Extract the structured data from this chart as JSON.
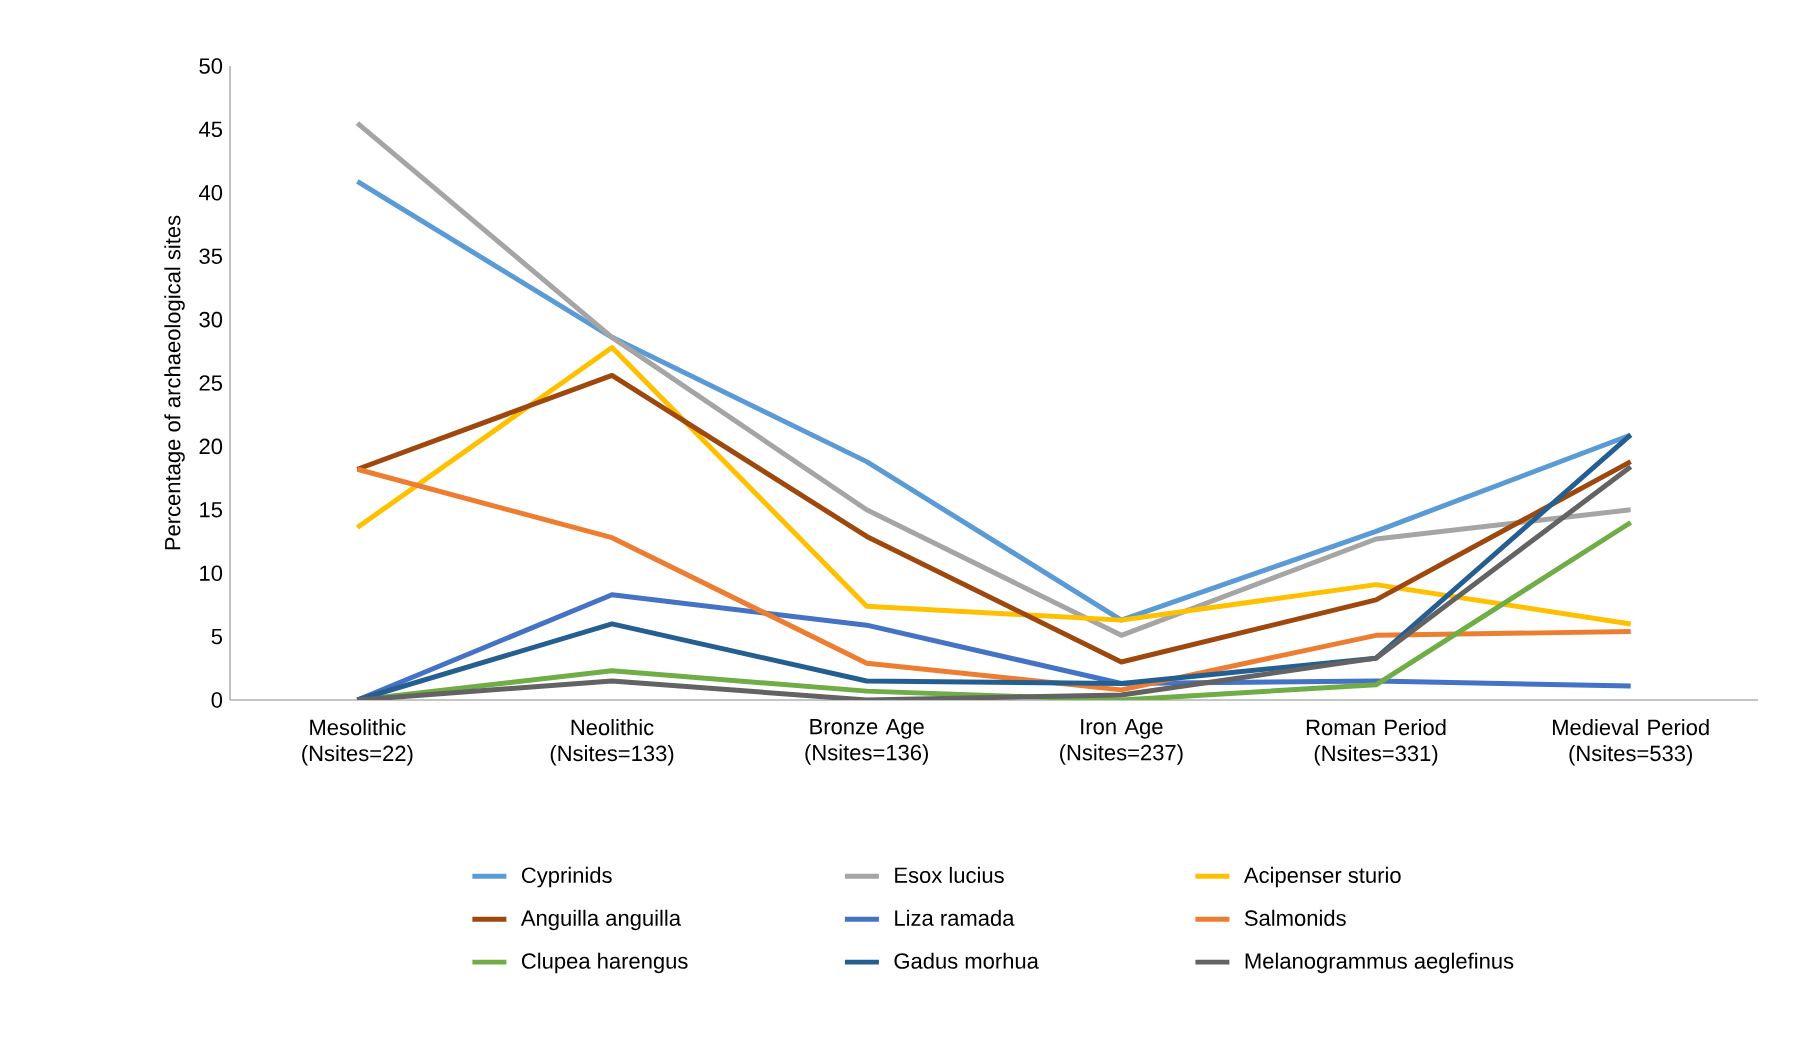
{
  "chart_data": {
    "type": "line",
    "ylabel": "Percentage of archaeological sites",
    "categories": [
      "Mesolithic (Nsites=22)",
      "Neolithic (Nsites=133)",
      "Bronze Age (Nsites=136)",
      "Iron Age (Nsites=237)",
      "Roman Period (Nsites=331)",
      "Medieval Period (Nsites=533)"
    ],
    "ylim": [
      0,
      50
    ],
    "yticks": [
      0,
      5,
      10,
      15,
      20,
      25,
      30,
      35,
      40,
      45,
      50
    ],
    "grid": false,
    "legend": "bottom",
    "marker": "none",
    "line_style": "solid",
    "series": [
      {
        "name": "Cyprinids",
        "color": "#5b9bd5",
        "values": [
          40.9,
          28.6,
          18.8,
          6.3,
          13.3,
          20.9
        ]
      },
      {
        "name": "Esox lucius",
        "color": "#a5a5a5",
        "values": [
          45.5,
          28.6,
          15.0,
          5.1,
          12.7,
          15.0
        ]
      },
      {
        "name": "Acipenser sturio",
        "color": "#ffc000",
        "values": [
          13.6,
          27.8,
          7.4,
          6.3,
          9.1,
          6.0
        ]
      },
      {
        "name": "Anguilla anguilla",
        "color": "#9e480e",
        "values": [
          18.2,
          25.6,
          12.9,
          3.0,
          7.9,
          18.8
        ]
      },
      {
        "name": "Liza ramada",
        "color": "#4472c4",
        "values": [
          0,
          8.3,
          5.9,
          1.3,
          1.5,
          1.1
        ]
      },
      {
        "name": "Salmonids",
        "color": "#ed7d31",
        "values": [
          18.2,
          12.8,
          2.9,
          0.8,
          5.1,
          5.4
        ]
      },
      {
        "name": "Clupea harengus",
        "color": "#70ad47",
        "values": [
          0,
          2.3,
          0.7,
          0,
          1.2,
          14.0
        ]
      },
      {
        "name": "Gadus morhua",
        "color": "#255e91",
        "values": [
          0,
          6.0,
          1.5,
          1.3,
          3.3,
          20.9
        ]
      },
      {
        "name": "Melanogrammus aeglefinus",
        "color": "#636363",
        "values": [
          0,
          1.5,
          0,
          0.4,
          3.3,
          18.4
        ]
      }
    ]
  }
}
